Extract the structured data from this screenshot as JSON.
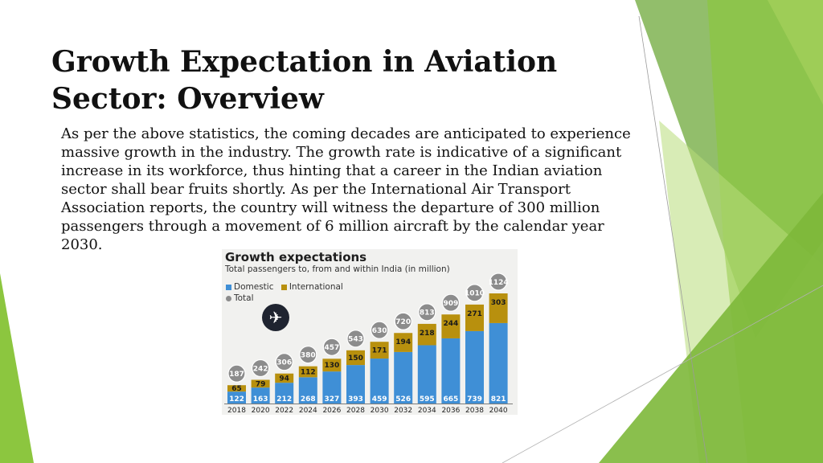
{
  "slide": {
    "title": "Growth Expectation in Aviation Sector: Overview",
    "body": "As per the above statistics, the coming decades are anticipated to experience massive growth in the industry. The growth rate is indicative of a significant increase in its workforce, thus hinting that a career in the Indian aviation sector shall bear fruits shortly. As per the International Air Transport Association reports, the country will witness the departure of 300 million passengers through a movement of 6 million aircraft by the calendar year 2030."
  },
  "colors": {
    "domestic": "#3f8fd6",
    "international": "#b8900e",
    "total": "#8c8c8c",
    "panel": "#f1f1ef",
    "accent_green": "#8cc63f"
  },
  "icons": {
    "chart_icon": "airplane-icon"
  },
  "chart_data": {
    "type": "bar",
    "stacked": true,
    "title": "Growth expectations",
    "subtitle": "Total passengers to, from and within India (in million)",
    "legend": [
      "Domestic",
      "International",
      "Total"
    ],
    "categories": [
      "2018",
      "2020",
      "2022",
      "2024",
      "2026",
      "2028",
      "2030",
      "2032",
      "2034",
      "2036",
      "2038",
      "2040"
    ],
    "series": [
      {
        "name": "Domestic",
        "values": [
          122,
          163,
          212,
          268,
          327,
          393,
          459,
          526,
          595,
          665,
          739,
          821
        ]
      },
      {
        "name": "International",
        "values": [
          65,
          79,
          94,
          112,
          130,
          150,
          171,
          194,
          218,
          244,
          271,
          303
        ]
      }
    ],
    "totals": [
      187,
      242,
      306,
      380,
      457,
      543,
      630,
      720,
      813,
      909,
      1010,
      1124
    ],
    "ylim": [
      0,
      1124
    ],
    "grid": false,
    "legend_position": "top-left"
  }
}
